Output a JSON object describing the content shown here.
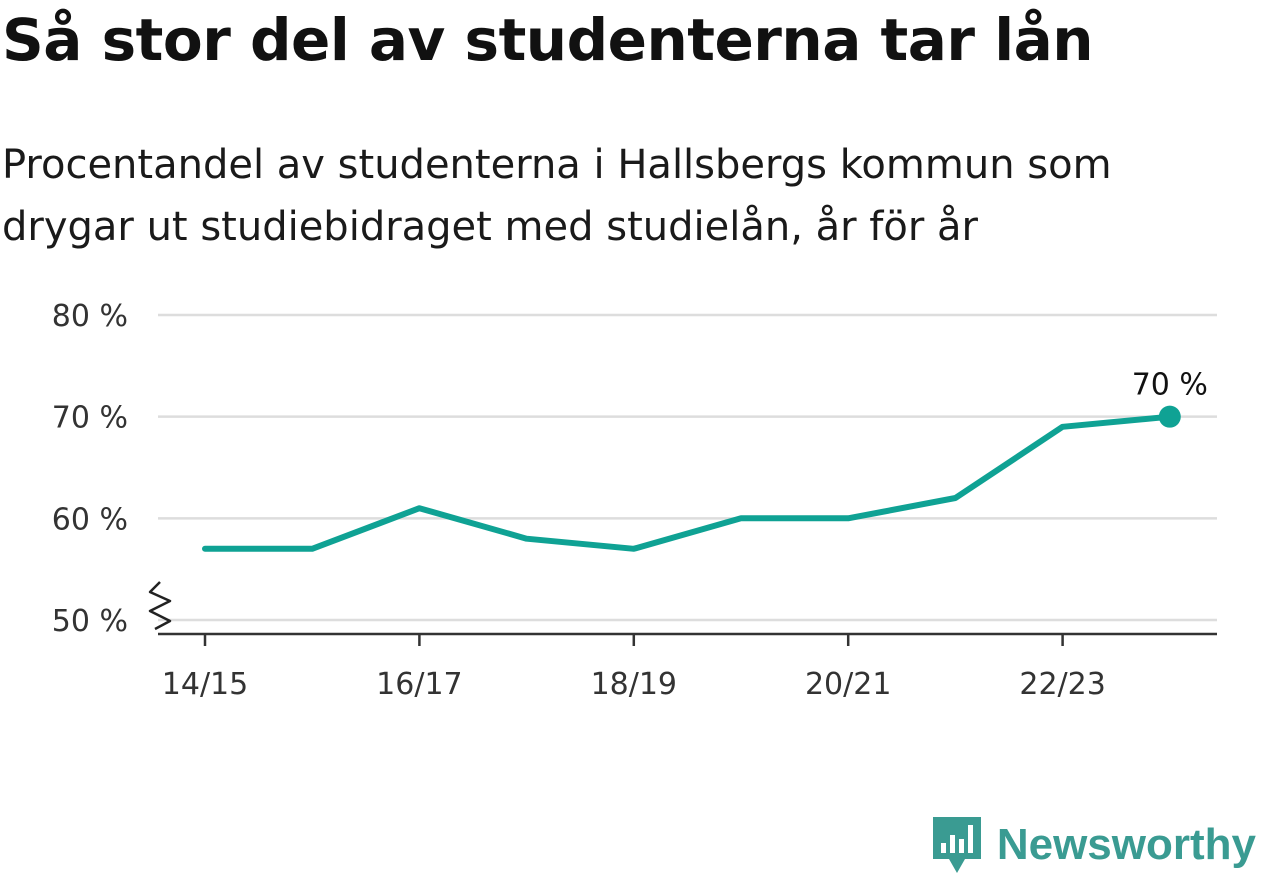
{
  "chart_data": {
    "type": "line",
    "title": "Så stor del av studenterna tar lån",
    "subtitle": "Procentandel av studenterna i Hallsbergs kommun som drygar ut studiebidraget med studielån, år för år",
    "x": [
      "14/15",
      "15/16",
      "16/17",
      "17/18",
      "18/19",
      "19/20",
      "20/21",
      "21/22",
      "22/23",
      "23/24"
    ],
    "x_tick_labels": [
      "14/15",
      "16/17",
      "18/19",
      "20/21",
      "22/23"
    ],
    "series": [
      {
        "values": [
          57,
          57,
          61,
          58,
          57,
          60,
          60,
          62,
          69,
          70
        ]
      }
    ],
    "y_ticks": [
      50,
      60,
      70,
      80
    ],
    "y_tick_labels": [
      "50 %",
      "60 %",
      "70 %",
      "80 %"
    ],
    "ylim": [
      50,
      80
    ],
    "axis_break": true,
    "grid": true,
    "last_value_label": "70 %",
    "line_color": "#0fa294"
  },
  "brand": {
    "name": "Newsworthy",
    "color": "#3a9b92"
  }
}
